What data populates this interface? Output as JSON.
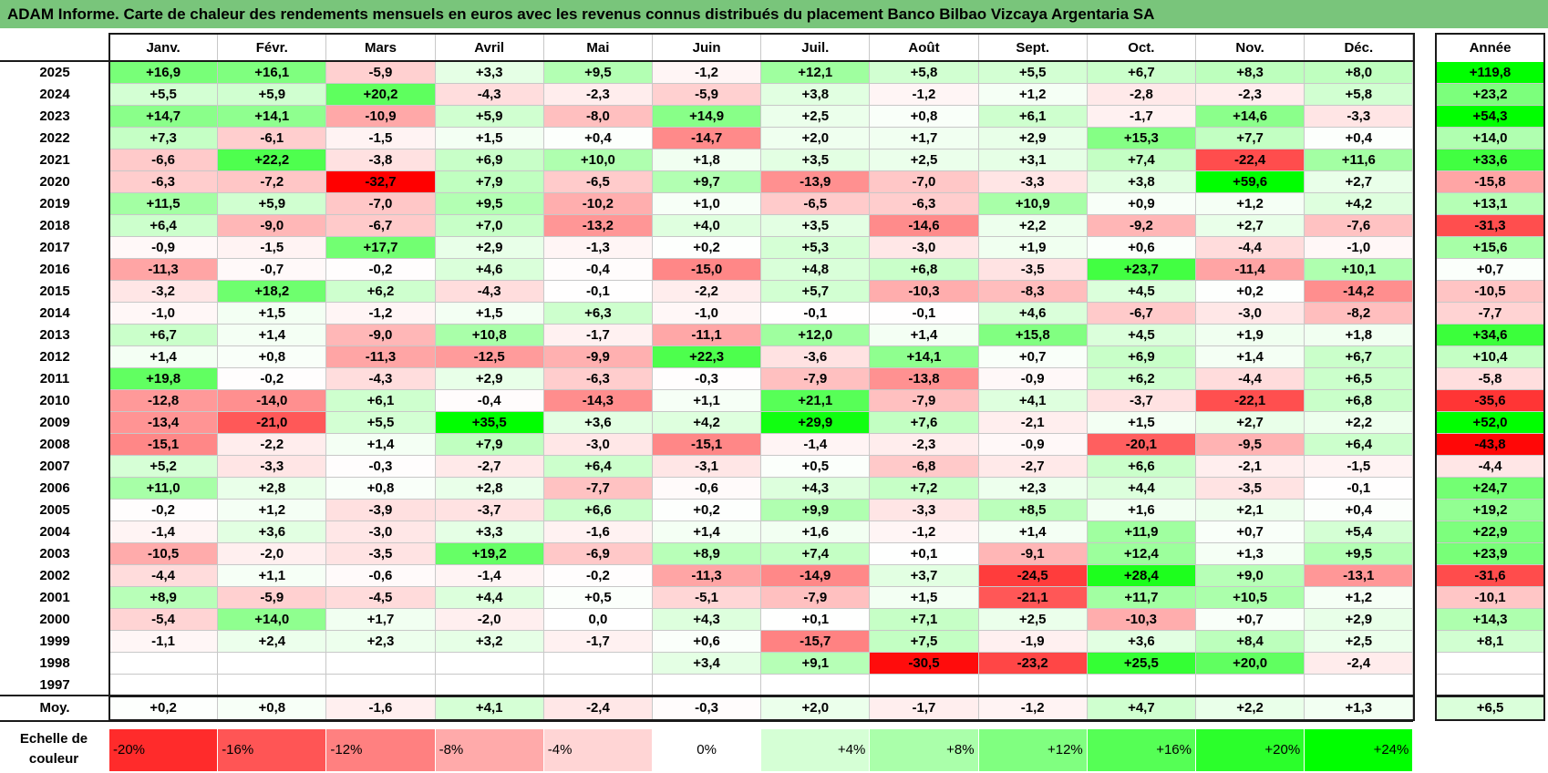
{
  "title": "ADAM Informe. Carte de chaleur des rendements mensuels en euros avec les revenus connus distribués du placement Banco Bilbao Vizcaya Argentaria SA",
  "colors": {
    "title_bg": "#79c57b",
    "neg_max": "#ff0000",
    "pos_max": "#00ff00",
    "zero": "#ffffff"
  },
  "chart_data": {
    "type": "heatmap",
    "title": "ADAM Informe. Carte de chaleur des rendements mensuels en euros avec les revenus connus distribués du placement Banco Bilbao Vizcaya Argentaria SA",
    "months": [
      "Janv.",
      "Févr.",
      "Mars",
      "Avril",
      "Mai",
      "Juin",
      "Juil.",
      "Août",
      "Sept.",
      "Oct.",
      "Nov.",
      "Déc."
    ],
    "year_header": "Année",
    "rows": [
      {
        "year": "2025",
        "values": [
          "+16,9",
          "+16,1",
          "-5,9",
          "+3,3",
          "+9,5",
          "-1,2",
          "+12,1",
          "+5,8",
          "+5,5",
          "+6,7",
          "+8,3",
          "+8,0"
        ],
        "total": "+119,8"
      },
      {
        "year": "2024",
        "values": [
          "+5,5",
          "+5,9",
          "+20,2",
          "-4,3",
          "-2,3",
          "-5,9",
          "+3,8",
          "-1,2",
          "+1,2",
          "-2,8",
          "-2,3",
          "+5,8"
        ],
        "total": "+23,2"
      },
      {
        "year": "2023",
        "values": [
          "+14,7",
          "+14,1",
          "-10,9",
          "+5,9",
          "-8,0",
          "+14,9",
          "+2,5",
          "+0,8",
          "+6,1",
          "-1,7",
          "+14,6",
          "-3,3"
        ],
        "total": "+54,3"
      },
      {
        "year": "2022",
        "values": [
          "+7,3",
          "-6,1",
          "-1,5",
          "+1,5",
          "+0,4",
          "-14,7",
          "+2,0",
          "+1,7",
          "+2,9",
          "+15,3",
          "+7,7",
          "+0,4"
        ],
        "total": "+14,0"
      },
      {
        "year": "2021",
        "values": [
          "-6,6",
          "+22,2",
          "-3,8",
          "+6,9",
          "+10,0",
          "+1,8",
          "+3,5",
          "+2,5",
          "+3,1",
          "+7,4",
          "-22,4",
          "+11,6"
        ],
        "total": "+33,6"
      },
      {
        "year": "2020",
        "values": [
          "-6,3",
          "-7,2",
          "-32,7",
          "+7,9",
          "-6,5",
          "+9,7",
          "-13,9",
          "-7,0",
          "-3,3",
          "+3,8",
          "+59,6",
          "+2,7"
        ],
        "total": "-15,8"
      },
      {
        "year": "2019",
        "values": [
          "+11,5",
          "+5,9",
          "-7,0",
          "+9,5",
          "-10,2",
          "+1,0",
          "-6,5",
          "-6,3",
          "+10,9",
          "+0,9",
          "+1,2",
          "+4,2"
        ],
        "total": "+13,1"
      },
      {
        "year": "2018",
        "values": [
          "+6,4",
          "-9,0",
          "-6,7",
          "+7,0",
          "-13,2",
          "+4,0",
          "+3,5",
          "-14,6",
          "+2,2",
          "-9,2",
          "+2,7",
          "-7,6"
        ],
        "total": "-31,3"
      },
      {
        "year": "2017",
        "values": [
          "-0,9",
          "-1,5",
          "+17,7",
          "+2,9",
          "-1,3",
          "+0,2",
          "+5,3",
          "-3,0",
          "+1,9",
          "+0,6",
          "-4,4",
          "-1,0"
        ],
        "total": "+15,6"
      },
      {
        "year": "2016",
        "values": [
          "-11,3",
          "-0,7",
          "-0,2",
          "+4,6",
          "-0,4",
          "-15,0",
          "+4,8",
          "+6,8",
          "-3,5",
          "+23,7",
          "-11,4",
          "+10,1"
        ],
        "total": "+0,7"
      },
      {
        "year": "2015",
        "values": [
          "-3,2",
          "+18,2",
          "+6,2",
          "-4,3",
          "-0,1",
          "-2,2",
          "+5,7",
          "-10,3",
          "-8,3",
          "+4,5",
          "+0,2",
          "-14,2"
        ],
        "total": "-10,5"
      },
      {
        "year": "2014",
        "values": [
          "-1,0",
          "+1,5",
          "-1,2",
          "+1,5",
          "+6,3",
          "-1,0",
          "-0,1",
          "-0,1",
          "+4,6",
          "-6,7",
          "-3,0",
          "-8,2"
        ],
        "total": "-7,7"
      },
      {
        "year": "2013",
        "values": [
          "+6,7",
          "+1,4",
          "-9,0",
          "+10,8",
          "-1,7",
          "-11,1",
          "+12,0",
          "+1,4",
          "+15,8",
          "+4,5",
          "+1,9",
          "+1,8"
        ],
        "total": "+34,6"
      },
      {
        "year": "2012",
        "values": [
          "+1,4",
          "+0,8",
          "-11,3",
          "-12,5",
          "-9,9",
          "+22,3",
          "-3,6",
          "+14,1",
          "+0,7",
          "+6,9",
          "+1,4",
          "+6,7"
        ],
        "total": "+10,4"
      },
      {
        "year": "2011",
        "values": [
          "+19,8",
          "-0,2",
          "-4,3",
          "+2,9",
          "-6,3",
          "-0,3",
          "-7,9",
          "-13,8",
          "-0,9",
          "+6,2",
          "-4,4",
          "+6,5"
        ],
        "total": "-5,8"
      },
      {
        "year": "2010",
        "values": [
          "-12,8",
          "-14,0",
          "+6,1",
          "-0,4",
          "-14,3",
          "+1,1",
          "+21,1",
          "-7,9",
          "+4,1",
          "-3,7",
          "-22,1",
          "+6,8"
        ],
        "total": "-35,6"
      },
      {
        "year": "2009",
        "values": [
          "-13,4",
          "-21,0",
          "+5,5",
          "+35,5",
          "+3,6",
          "+4,2",
          "+29,9",
          "+7,6",
          "-2,1",
          "+1,5",
          "+2,7",
          "+2,2"
        ],
        "total": "+52,0"
      },
      {
        "year": "2008",
        "values": [
          "-15,1",
          "-2,2",
          "+1,4",
          "+7,9",
          "-3,0",
          "-15,1",
          "-1,4",
          "-2,3",
          "-0,9",
          "-20,1",
          "-9,5",
          "+6,4"
        ],
        "total": "-43,8"
      },
      {
        "year": "2007",
        "values": [
          "+5,2",
          "-3,3",
          "-0,3",
          "-2,7",
          "+6,4",
          "-3,1",
          "+0,5",
          "-6,8",
          "-2,7",
          "+6,6",
          "-2,1",
          "-1,5"
        ],
        "total": "-4,4"
      },
      {
        "year": "2006",
        "values": [
          "+11,0",
          "+2,8",
          "+0,8",
          "+2,8",
          "-7,7",
          "-0,6",
          "+4,3",
          "+7,2",
          "+2,3",
          "+4,4",
          "-3,5",
          "-0,1"
        ],
        "total": "+24,7"
      },
      {
        "year": "2005",
        "values": [
          "-0,2",
          "+1,2",
          "-3,9",
          "-3,7",
          "+6,6",
          "+0,2",
          "+9,9",
          "-3,3",
          "+8,5",
          "+1,6",
          "+2,1",
          "+0,4"
        ],
        "total": "+19,2"
      },
      {
        "year": "2004",
        "values": [
          "-1,4",
          "+3,6",
          "-3,0",
          "+3,3",
          "-1,6",
          "+1,4",
          "+1,6",
          "-1,2",
          "+1,4",
          "+11,9",
          "+0,7",
          "+5,4"
        ],
        "total": "+22,9"
      },
      {
        "year": "2003",
        "values": [
          "-10,5",
          "-2,0",
          "-3,5",
          "+19,2",
          "-6,9",
          "+8,9",
          "+7,4",
          "+0,1",
          "-9,1",
          "+12,4",
          "+1,3",
          "+9,5"
        ],
        "total": "+23,9"
      },
      {
        "year": "2002",
        "values": [
          "-4,4",
          "+1,1",
          "-0,6",
          "-1,4",
          "-0,2",
          "-11,3",
          "-14,9",
          "+3,7",
          "-24,5",
          "+28,4",
          "+9,0",
          "-13,1"
        ],
        "total": "-31,6"
      },
      {
        "year": "2001",
        "values": [
          "+8,9",
          "-5,9",
          "-4,5",
          "+4,4",
          "+0,5",
          "-5,1",
          "-7,9",
          "+1,5",
          "-21,1",
          "+11,7",
          "+10,5",
          "+1,2"
        ],
        "total": "-10,1"
      },
      {
        "year": "2000",
        "values": [
          "-5,4",
          "+14,0",
          "+1,7",
          "-2,0",
          "0,0",
          "+4,3",
          "+0,1",
          "+7,1",
          "+2,5",
          "-10,3",
          "+0,7",
          "+2,9"
        ],
        "total": "+14,3"
      },
      {
        "year": "1999",
        "values": [
          "-1,1",
          "+2,4",
          "+2,3",
          "+3,2",
          "-1,7",
          "+0,6",
          "-15,7",
          "+7,5",
          "-1,9",
          "+3,6",
          "+8,4",
          "+2,5"
        ],
        "total": "+8,1"
      },
      {
        "year": "1998",
        "values": [
          "",
          "",
          "",
          "",
          "",
          "+3,4",
          "+9,1",
          "-30,5",
          "-23,2",
          "+25,5",
          "+20,0",
          "-2,4"
        ],
        "total": ""
      },
      {
        "year": "1997",
        "values": [
          "",
          "",
          "",
          "",
          "",
          "",
          "",
          "",
          "",
          "",
          "",
          ""
        ],
        "total": ""
      }
    ],
    "average": {
      "label": "Moy.",
      "values": [
        "+0,2",
        "+0,8",
        "-1,6",
        "+4,1",
        "-2,4",
        "-0,3",
        "+2,0",
        "-1,7",
        "-1,2",
        "+4,7",
        "+2,2",
        "+1,3"
      ],
      "total": "+6,5"
    },
    "scale": {
      "label": "Echelle de couleur",
      "steps": [
        "-20%",
        "-16%",
        "-12%",
        "-8%",
        "-4%",
        "0%",
        "+4%",
        "+8%",
        "+12%",
        "+16%",
        "+20%",
        "+24%"
      ]
    }
  }
}
